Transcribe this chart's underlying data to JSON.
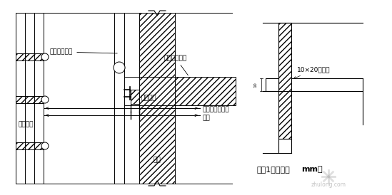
{
  "bg_color": "#ffffff",
  "lc": "#000000",
  "label_waice": "外侧配大模板",
  "label_neice": "内侧配木模板",
  "label_jiaoshoujia": "外脉手架",
  "label_tongchang": "通长木方",
  "label_chuanqiang": "穿墙螺栓与外架",
  "label_laijie": "拉接",
  "label_waiqiang": "外墙",
  "label_mfeng": "10×20明缝条",
  "label_node": "节炱1（单位：",
  "label_mm": "mm）",
  "watermark": "zhulong.com",
  "fs": 6.5
}
